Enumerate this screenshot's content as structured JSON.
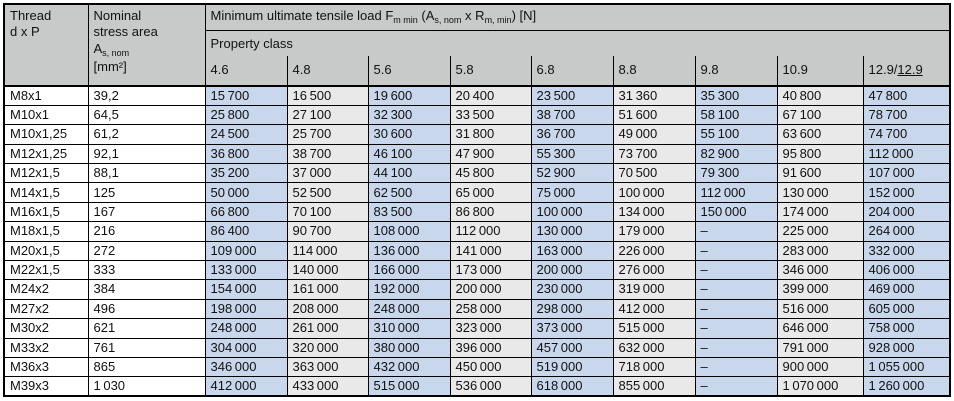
{
  "colors": {
    "header_bg": "#c7cac9",
    "col_blue": "#c9d7ec",
    "col_gray": "#e9e9e9",
    "border": "#000000",
    "cell_white": "#ffffff"
  },
  "table": {
    "thread_header": {
      "line1": "Thread",
      "line2": "d x P"
    },
    "area_header": {
      "line1": "Nominal",
      "line2": "stress area",
      "symbol": "A",
      "symbol_sub": "s, nom",
      "unit": "[mm²]"
    },
    "load_header": {
      "seg1": "Minimum ultimate tensile load F",
      "sub1": "m min",
      "seg2": " (A",
      "sub2": "s, nom",
      "seg3": " x R",
      "sub3": "m, min",
      "seg4": ") [N]"
    },
    "property_class_label": "Property class",
    "classes": [
      {
        "label": "4.6"
      },
      {
        "label": "4.8"
      },
      {
        "label": "5.6"
      },
      {
        "label": "5.8"
      },
      {
        "label": "6.8"
      },
      {
        "label": "8.8"
      },
      {
        "label": "9.8"
      },
      {
        "label": "10.9"
      },
      {
        "label": "12.9/",
        "underlined": "12.9"
      }
    ],
    "rows": [
      {
        "thread": "M8x1",
        "area": "39,2",
        "loads": [
          "15 700",
          "16 500",
          "19 600",
          "20 400",
          "23 500",
          "31 360",
          "35 300",
          "40 800",
          "47 800"
        ]
      },
      {
        "thread": "M10x1",
        "area": "64,5",
        "loads": [
          "25 800",
          "27 100",
          "32 300",
          "33 500",
          "38 700",
          "51 600",
          "58 100",
          "67 100",
          "78 700"
        ]
      },
      {
        "thread": "M10x1,25",
        "area": "61,2",
        "loads": [
          "24 500",
          "25 700",
          "30 600",
          "31 800",
          "36 700",
          "49 000",
          "55 100",
          "63 600",
          "74 700"
        ]
      },
      {
        "thread": "M12x1,25",
        "area": "92,1",
        "loads": [
          "36 800",
          "38 700",
          "46 100",
          "47 900",
          "55 300",
          "73 700",
          "82 900",
          "95 800",
          "112 000"
        ]
      },
      {
        "thread": "M12x1,5",
        "area": "88,1",
        "loads": [
          "35 200",
          "37 000",
          "44 100",
          "45 800",
          "52 900",
          "70 500",
          "79 300",
          "91 600",
          "107 000"
        ]
      },
      {
        "thread": "M14x1,5",
        "area": "125",
        "loads": [
          "50 000",
          "52 500",
          "62 500",
          "65 000",
          "75 000",
          "100 000",
          "112 000",
          "130 000",
          "152 000"
        ]
      },
      {
        "thread": "M16x1,5",
        "area": "167",
        "loads": [
          "66 800",
          "70 100",
          "83 500",
          "86 800",
          "100 000",
          "134 000",
          "150 000",
          "174 000",
          "204 000"
        ]
      },
      {
        "thread": "M18x1,5",
        "area": "216",
        "loads": [
          "86 400",
          "90 700",
          "108 000",
          "112 000",
          "130 000",
          "179 000",
          "–",
          "225 000",
          "264 000"
        ]
      },
      {
        "thread": "M20x1,5",
        "area": "272",
        "loads": [
          "109 000",
          "114 000",
          "136 000",
          "141 000",
          "163 000",
          "226 000",
          "–",
          "283 000",
          "332 000"
        ]
      },
      {
        "thread": "M22x1,5",
        "area": "333",
        "loads": [
          "133 000",
          "140 000",
          "166 000",
          "173 000",
          "200 000",
          "276 000",
          "–",
          "346 000",
          "406 000"
        ]
      },
      {
        "thread": "M24x2",
        "area": "384",
        "loads": [
          "154 000",
          "161 000",
          "192 000",
          "200 000",
          "230 000",
          "319 000",
          "–",
          "399 000",
          "469 000"
        ]
      },
      {
        "thread": "M27x2",
        "area": "496",
        "loads": [
          "198 000",
          "208 000",
          "248 000",
          "258 000",
          "298 000",
          "412 000",
          "–",
          "516 000",
          "605 000"
        ]
      },
      {
        "thread": "M30x2",
        "area": "621",
        "loads": [
          "248 000",
          "261 000",
          "310 000",
          "323 000",
          "373 000",
          "515 000",
          "–",
          "646 000",
          "758 000"
        ]
      },
      {
        "thread": "M33x2",
        "area": "761",
        "loads": [
          "304 000",
          "320 000",
          "380 000",
          "396 000",
          "457 000",
          "632 000",
          "–",
          "791 000",
          "928 000"
        ]
      },
      {
        "thread": "M36x3",
        "area": "865",
        "loads": [
          "346 000",
          "363 000",
          "432 000",
          "450 000",
          "519 000",
          "718 000",
          "–",
          "900 000",
          "1 055 000"
        ]
      },
      {
        "thread": "M39x3",
        "area": "1 030",
        "loads": [
          "412 000",
          "433 000",
          "515 000",
          "536 000",
          "618 000",
          "855 000",
          "–",
          "1 070 000",
          "1 260 000"
        ]
      }
    ]
  }
}
